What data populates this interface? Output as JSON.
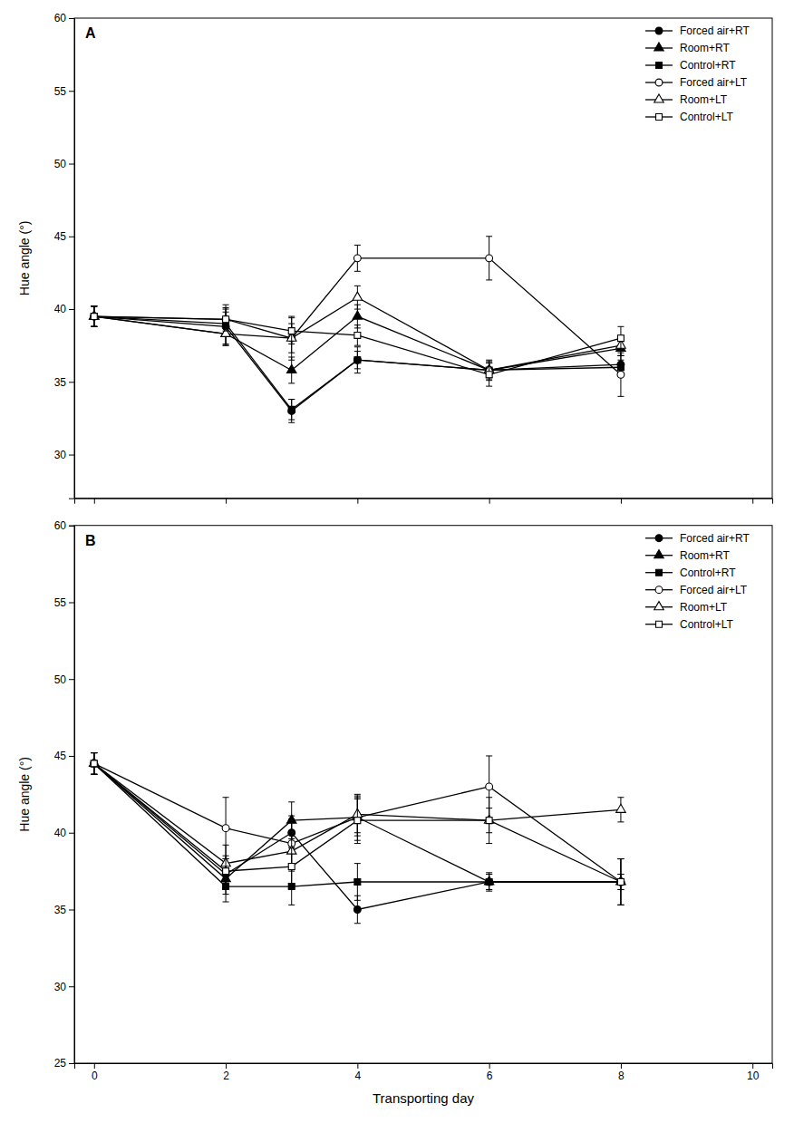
{
  "chart_data": [
    {
      "type": "line",
      "title": "A",
      "x": [
        0,
        2,
        3,
        4,
        6,
        8
      ],
      "xlim": [
        -0.3,
        10.3
      ],
      "xticks": [
        0,
        2,
        4,
        6,
        8,
        10
      ],
      "ylim": [
        27,
        60
      ],
      "yticks": [
        30,
        35,
        40,
        45,
        50,
        55,
        60
      ],
      "ylabel": "Hue angle (°)",
      "tick_labels": "y",
      "legend": "upper right",
      "grid": false,
      "series": [
        {
          "name": "Forced air+RT",
          "color": "#000000",
          "marker": "circle",
          "values": [
            39.5,
            38.8,
            33.0,
            36.5,
            35.8,
            36.2
          ],
          "errors": [
            0.7,
            1.2,
            0.8,
            0.6,
            0.7,
            0.6
          ]
        },
        {
          "name": "Room+RT",
          "color": "#000000",
          "marker": "triangle",
          "values": [
            39.5,
            38.3,
            35.8,
            39.5,
            35.8,
            37.3
          ],
          "errors": [
            0.7,
            0.8,
            0.9,
            0.8,
            0.5,
            0.5
          ]
        },
        {
          "name": "Control+RT",
          "color": "#000000",
          "marker": "square",
          "values": [
            39.5,
            39.0,
            33.1,
            36.5,
            35.8,
            36.0
          ],
          "errors": [
            0.7,
            0.8,
            0.7,
            0.9,
            0.6,
            0.5
          ]
        },
        {
          "name": "Forced air+LT",
          "color": "#000000",
          "marker": "circle-open",
          "values": [
            39.5,
            39.3,
            38.0,
            43.5,
            43.5,
            35.5
          ],
          "errors": [
            0.7,
            1.0,
            1.5,
            0.9,
            1.5,
            1.5
          ]
        },
        {
          "name": "Room+LT",
          "color": "#000000",
          "marker": "triangle-open",
          "values": [
            39.5,
            38.3,
            38.0,
            40.8,
            35.8,
            37.5
          ],
          "errors": [
            0.7,
            0.8,
            1.0,
            0.8,
            0.5,
            0.7
          ]
        },
        {
          "name": "Control+LT",
          "color": "#000000",
          "marker": "square-open",
          "values": [
            39.5,
            39.3,
            38.5,
            38.2,
            35.5,
            38.0
          ],
          "errors": [
            0.7,
            0.8,
            0.9,
            0.7,
            0.8,
            0.8
          ]
        }
      ]
    },
    {
      "type": "line",
      "title": "B",
      "x": [
        0,
        2,
        3,
        4,
        6,
        8
      ],
      "xlim": [
        -0.3,
        10.3
      ],
      "xticks": [
        0,
        2,
        4,
        6,
        8,
        10
      ],
      "ylim": [
        25,
        60
      ],
      "yticks": [
        25,
        30,
        35,
        40,
        45,
        50,
        55,
        60
      ],
      "xlabel": "Transporting day",
      "ylabel": "Hue angle (°)",
      "legend": "upper right",
      "grid": false,
      "series": [
        {
          "name": "Forced air+RT",
          "color": "#000000",
          "marker": "circle",
          "values": [
            44.5,
            37.3,
            40.0,
            35.0,
            36.8,
            36.8
          ],
          "errors": [
            0.7,
            1.0,
            0.9,
            0.9,
            0.6,
            1.5
          ]
        },
        {
          "name": "Room+RT",
          "color": "#000000",
          "marker": "triangle",
          "values": [
            44.5,
            37.0,
            40.8,
            41.0,
            36.8,
            36.8
          ],
          "errors": [
            0.7,
            1.0,
            1.2,
            1.2,
            0.5,
            0.5
          ]
        },
        {
          "name": "Control+RT",
          "color": "#000000",
          "marker": "square",
          "values": [
            44.5,
            36.5,
            36.5,
            36.8,
            36.8,
            36.8
          ],
          "errors": [
            0.7,
            1.0,
            1.2,
            1.2,
            0.5,
            0.5
          ]
        },
        {
          "name": "Forced air+LT",
          "color": "#000000",
          "marker": "circle-open",
          "values": [
            44.5,
            40.3,
            39.3,
            41.0,
            43.0,
            36.8
          ],
          "errors": [
            0.7,
            2.0,
            1.8,
            1.5,
            2.0,
            1.5
          ]
        },
        {
          "name": "Room+LT",
          "color": "#000000",
          "marker": "triangle-open",
          "values": [
            44.5,
            38.0,
            38.8,
            41.2,
            40.8,
            41.5
          ],
          "errors": [
            0.7,
            1.2,
            1.2,
            1.2,
            0.8,
            0.8
          ]
        },
        {
          "name": "Control+LT",
          "color": "#000000",
          "marker": "square-open",
          "values": [
            44.5,
            37.5,
            37.8,
            40.8,
            40.8,
            36.8
          ],
          "errors": [
            0.7,
            1.0,
            1.2,
            1.5,
            1.5,
            1.5
          ]
        }
      ]
    }
  ]
}
